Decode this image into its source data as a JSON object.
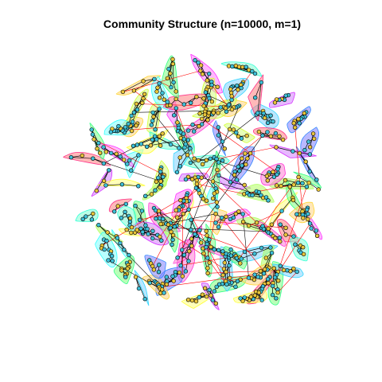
{
  "title": "Community Structure (n=10000, m=1)",
  "colors": {
    "background": "#ffffff",
    "node_fill": "#3ec0d8",
    "node_fill_alt": "#e8c43a",
    "node_stroke": "#000000",
    "edge_intra": "#000000",
    "edge_inter": "#ff0000",
    "community_palette": [
      "#ff8080",
      "#ffd480",
      "#d4ff80",
      "#80ff80",
      "#80ffd4",
      "#80d4ff",
      "#8080ff",
      "#d480ff",
      "#ff80d4",
      "#ffff80",
      "#80ff80",
      "#80ffff",
      "#ff80ff",
      "#b0ff60"
    ]
  }
}
